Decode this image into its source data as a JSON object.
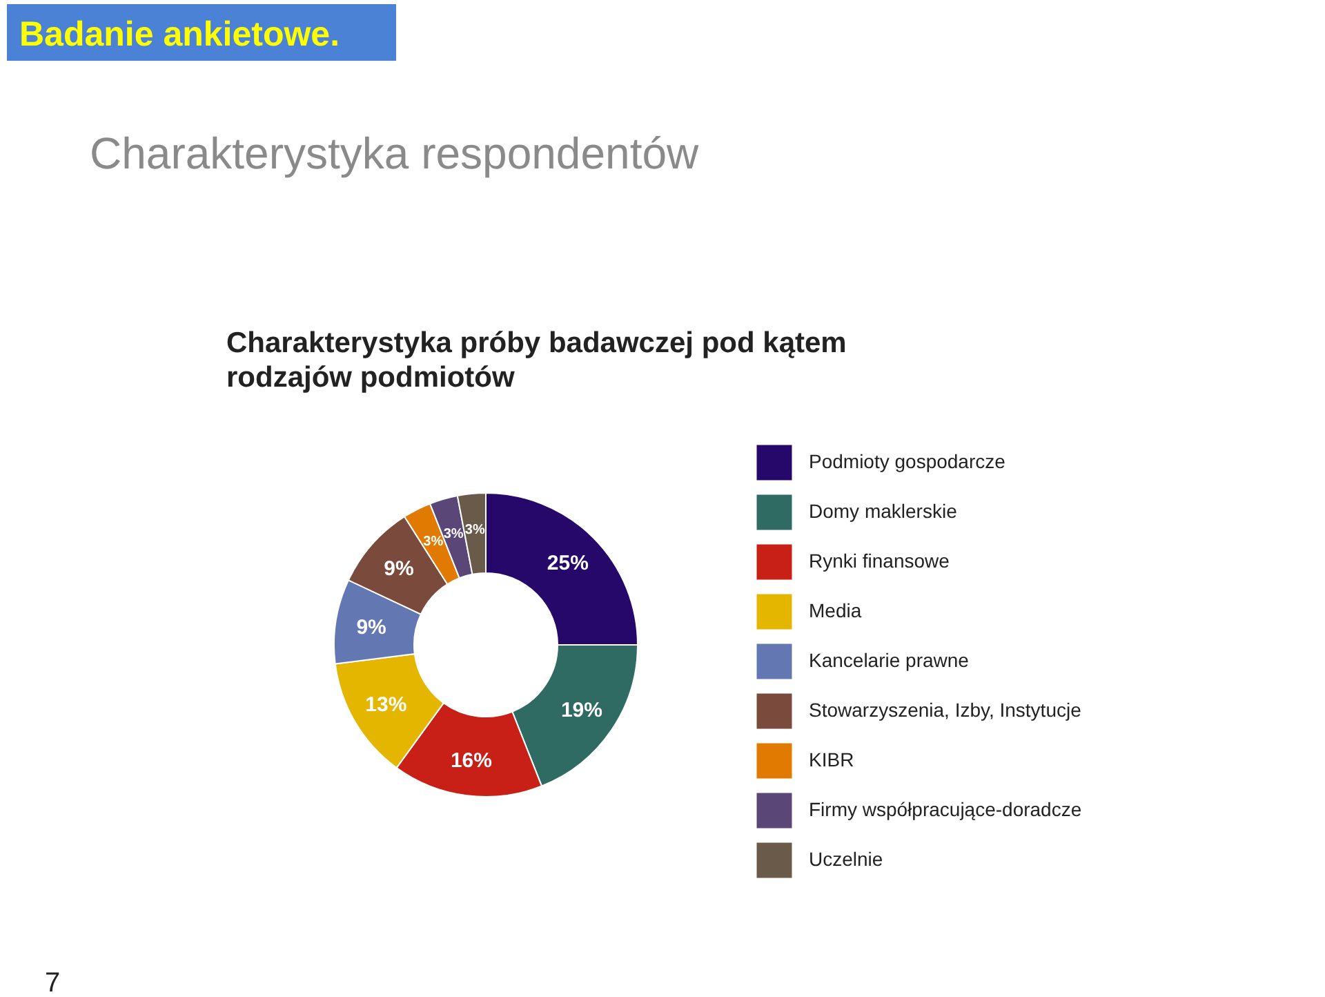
{
  "chart_data": {
    "type": "donut",
    "title": "Charakterystyka respondentów",
    "subtitle": "Charakterystyka próby badawczej pod kątem rodzajów podmiotów",
    "annotations": [
      "Badanie ankietowe.",
      "7"
    ],
    "categories": [
      "Podmioty gospodarcze",
      "Domy maklerskie",
      "Rynki finansowe",
      "Media",
      "Kancelarie prawne",
      "Stowarzyszenia, Izby, Instytucje",
      "KIBR",
      "Firmy współpracujące-doradcze",
      "Uczelnie"
    ],
    "values": [
      25,
      19,
      16,
      13,
      9,
      9,
      3,
      3,
      3
    ],
    "value_labels": [
      "25%",
      "19%",
      "16%",
      "13%",
      "9%",
      "9%",
      "3%",
      "3%",
      "3%"
    ],
    "colors": [
      "#26086a",
      "#2f6b63",
      "#c81f16",
      "#e4b600",
      "#6378b3",
      "#7a4b3c",
      "#e07a00",
      "#5b4777",
      "#6a5a4a"
    ],
    "legend": "right"
  }
}
